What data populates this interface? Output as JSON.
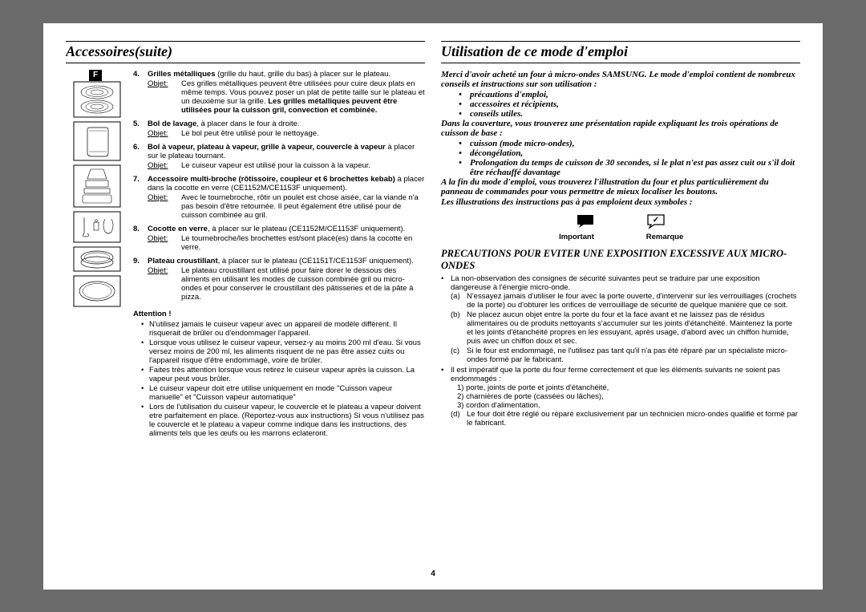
{
  "pageNumber": "4",
  "fTag": "F",
  "left": {
    "heading": "Accessoires(suite)",
    "items": [
      {
        "num": "4.",
        "title": "Grilles métalliques",
        "desc": " (grille du haut, grille du bas) à placer sur le plateau.",
        "objet": "Ces grilles métalliques peuvent être utilisées pour cuire deux plats en même temps. Vous pouvez poser un plat de petite taille sur le plateau et un deuxième sur la grille. Les grilles métalliques peuvent être utilisées pour la cuisson gril, convection et combinée.",
        "boldTail": true
      },
      {
        "num": "5.",
        "title": "Bol de lavage",
        "desc": ", à placer dans le four à droite.",
        "objet": "Le bol peut être utilisé pour le nettoyage."
      },
      {
        "num": "6.",
        "title": "Bol à vapeur, plateau à vapeur, grille à vapeur, couvercle à vapeur",
        "desc": " à placer sur le plateau tournant.",
        "objet": "Le cuiseur vapeur est utilisé pour la cuisson à la vapeur."
      },
      {
        "num": "7.",
        "title": "Accessoire multi-broche (rôtissoire, coupleur et 6 brochettes kebab)",
        "desc": " à placer dans la cocotte en verre (CE1152M/CE1153F uniquement).",
        "objet": "Avec le tournebroche, rôtir un poulet est chose aisée, car la viande n'a pas besoin d'être retournée. Il peut également être utilisé pour de cuisson combinée au gril."
      },
      {
        "num": "8.",
        "title": "Cocotte en verre",
        "desc": ", à placer sur le plateau (CE1152M/CE1153F uniquement).",
        "objet": "Le tournebroche/les brochettes est/sont placé(es) dans la cocotte en verre."
      },
      {
        "num": "9.",
        "title": "Plateau croustillant",
        "desc": ", à placer sur le plateau (CE1151T/CE1153F uniquement).",
        "objet": "Le plateau croustillant est utilisé pour faire dorer le dessous des aliments en utilisant les modes de cuisson combinée gril ou micro-ondes et pour conserver le croustillant des pâtisseries et de la pâte à pizza."
      }
    ],
    "objetLabel": "Objet:",
    "attention": {
      "title": "Attention !",
      "items": [
        "N'utilisez jamais le cuiseur vapeur avec un appareil de modèle différent. Il risquerait de brûler ou d'endommager l'appareil.",
        "Lorsque vous utilisez le cuiseur vapeur, versez-y au moins 200 ml d'eau. Si vous versez moins de 200 ml, les aliments risquent de ne pas être assez cuits ou l'appareil risque d'être endommagé, voire de brûler.",
        "Faites très attention lorsque vous retirez le cuiseur vapeur après la cuisson. La vapeur peut vous brûler.",
        "Le cuiseur vapeur doit etre utilise uniquement en mode \"Cuisson vapeur manuelle\" et \"Cuisson vapeur automatique\"",
        "Lors de l'utilisation du cuiseur vapeur, le couvercle et le plateau a vapeur doivent etre parfaitement en place. (Reportez-vous aux instructions) Si vous n'utilisez pas le couvercle et le plateau a vapeur comme indique dans les instructions, des aliments tels que les œufs ou les marrons eclateront."
      ]
    }
  },
  "right": {
    "heading": "Utilisation de ce mode d'emploi",
    "intro1": "Merci d'avoir acheté un four à micro-ondes SAMSUNG. Le mode d'emploi contient de nombreux conseils et instructions sur son utilisation :",
    "bullets1": [
      "précautions d'emploi,",
      "accessoires et récipients,",
      "conseils utiles."
    ],
    "intro2": "Dans la couverture, vous trouverez une présentation rapide expliquant les trois opérations de cuisson de base :",
    "bullets2": [
      "cuisson (mode micro-ondes),",
      "décongélation,",
      "Prolongation du temps de cuisson de 30 secondes, si le plat n'est pas assez cuit ou s'il doit être réchauffé davantage"
    ],
    "intro3": "A la fin du mode d'emploi, vous trouverez l'illustration du four et plus particulièrement du panneau de commandes pour vous permettre de mieux localiser les boutons.",
    "intro4": "Les illustrations des instructions pas à pas emploient deux symboles :",
    "symLabels": [
      "Important",
      "Remarque"
    ],
    "precTitle": "PRECAUTIONS POUR EVITER UNE EXPOSITION EXCESSIVE AUX MICRO-ONDES",
    "prec1": "La non-observation des consignes de sécurité suivantes peut se traduire par une exposition dangereuse à l'énergie micro-onde.",
    "precSub": [
      {
        "m": "(a)",
        "t": "N'essayez jamais d'utiliser le four avec la porte ouverte, d'intervenir sur les verrouillages (crochets de la porte) ou d'obturer les orifices de verrouillage de sécurité de quelque manière que ce soit."
      },
      {
        "m": "(b)",
        "t": "Ne placez aucun objet entre la porte du four et la face avant et ne laissez pas de résidus alimentaires ou de produits nettoyants s'accumuler sur les joints d'étanchéité. Maintenez la porte et les joints d'étanchéité propres en les essuyant, après usage, d'abord avec un chiffon humide, puis avec un chiffon doux et sec."
      },
      {
        "m": "(c)",
        "t": "Si le four est endommagé, ne l'utilisez pas tant qu'il n'a pas été réparé par un spécialiste micro-ondes formé par le fabricant."
      }
    ],
    "prec2": "Il est impératif que la porte du four ferme correctement et que les éléments suivants ne soient pas endommagés :",
    "prec2sub": [
      "1) porte, joints de porte et joints d'étanchéité,",
      "2) charnières de porte (cassées ou lâches),",
      "3) cordon d'alimentation."
    ],
    "precD": {
      "m": "(d)",
      "t": "Le four doit être réglé ou réparé exclusivement par un technicien micro-ondes qualifié et formé par le fabricant."
    }
  }
}
